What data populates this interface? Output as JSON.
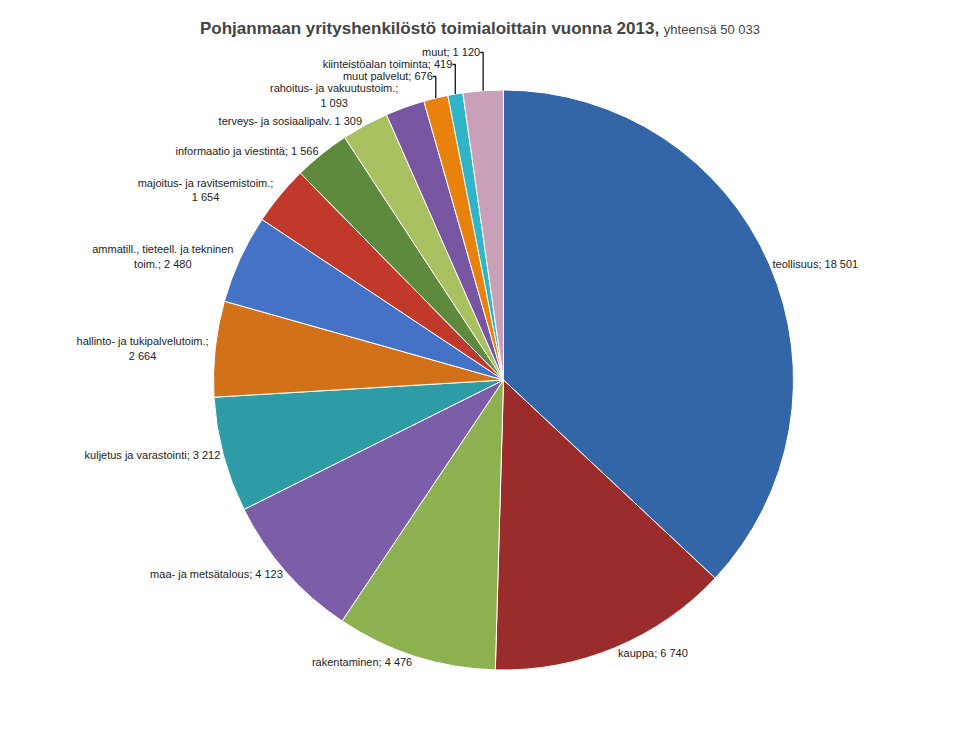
{
  "chart_data": {
    "type": "pie",
    "title": "Pohjanmaan yrityshenkilöstö toimialoittain vuonna 2013,",
    "subtitle": "yhteensä 50 033",
    "categories": [
      "teollisuus; 18 501",
      "kauppa; 6 740",
      "rakentaminen; 4 476",
      "maa- ja metsätalous; 4 123",
      "kuljetus ja varastointi; 3 212",
      "hallinto- ja tukipalvelutoim.;\n2 664",
      "ammatill., tieteell. ja tekninen\ntoim.; 2 480",
      "majoitus- ja ravitsemistoim.;\n1 654",
      "informaatio ja viestintä; 1 566",
      "terveys- ja sosiaalipalv. 1 309",
      "rahoitus- ja vakuutustoim.;\n1 093",
      "muut palvelut; 676",
      "kiinteistöalan toiminta; 419",
      "muut; 1 120"
    ],
    "values": [
      18501,
      6740,
      4476,
      4123,
      3212,
      2664,
      2480,
      1654,
      1566,
      1309,
      1093,
      676,
      419,
      1120
    ],
    "colors": [
      "#3366A6",
      "#9B2C2C",
      "#8DB050",
      "#7B5EA7",
      "#2E9CA6",
      "#D2711A",
      "#4472C4",
      "#C0392B",
      "#5D8A3C",
      "#A8C060",
      "#7855A0",
      "#E8820C",
      "#30B5C8",
      "#C9A0B8"
    ]
  }
}
